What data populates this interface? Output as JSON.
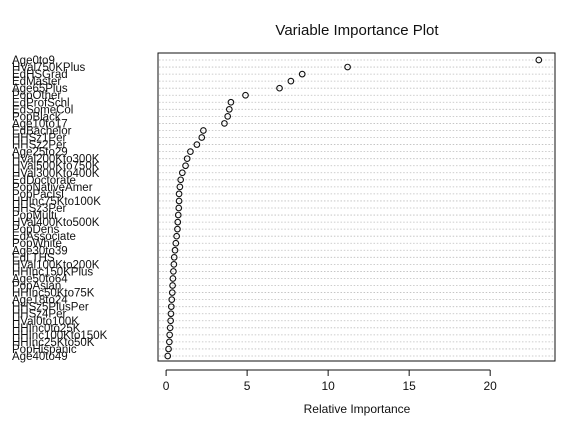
{
  "chart_data": {
    "type": "scatter",
    "title": "Variable Importance Plot",
    "xlabel": "Relative Importance",
    "ylabel": "",
    "xlim": [
      -0.5,
      24
    ],
    "x_ticks": [
      0,
      5,
      10,
      15,
      20
    ],
    "grid": true,
    "categories": [
      "Age0to9",
      "HVal750KPlus",
      "EdHSGrad",
      "EdMaster",
      "Age65Plus",
      "PopOther",
      "EdProfSchl",
      "EdSomeCol",
      "PopBlack",
      "Age10to17",
      "EdBachelor",
      "HHSz1Per",
      "HHSz2Per",
      "Age25to29",
      "HVal200Kto300K",
      "HVal500Kto750K",
      "HVal300Kto400K",
      "EdDoctorate",
      "PopNativeAmer",
      "PopPacIsl",
      "HHInc75Kto100K",
      "HHSz3Per",
      "PopMulti",
      "HVal400Kto500K",
      "PopDens",
      "EdAssociate",
      "PopWhite",
      "Age30to39",
      "EdLTHS",
      "HVal100Kto200K",
      "HHInc150KPlus",
      "Age50to64",
      "PopAsian",
      "HHInc50Kto75K",
      "Age18to24",
      "HHSz5PlusPer",
      "HHSz4Per",
      "HVal0to100K",
      "HHInc0to25K",
      "HHInc100Kto150K",
      "HHInc25Kto50K",
      "PopHispanic",
      "Age40to49"
    ],
    "values": [
      23.0,
      11.2,
      8.4,
      7.7,
      7.0,
      4.9,
      4.0,
      3.9,
      3.8,
      3.6,
      2.3,
      2.2,
      1.9,
      1.5,
      1.3,
      1.2,
      1.0,
      0.9,
      0.85,
      0.8,
      0.8,
      0.78,
      0.75,
      0.72,
      0.7,
      0.65,
      0.6,
      0.55,
      0.5,
      0.48,
      0.45,
      0.42,
      0.4,
      0.38,
      0.35,
      0.32,
      0.3,
      0.28,
      0.25,
      0.22,
      0.2,
      0.15,
      0.1
    ]
  }
}
